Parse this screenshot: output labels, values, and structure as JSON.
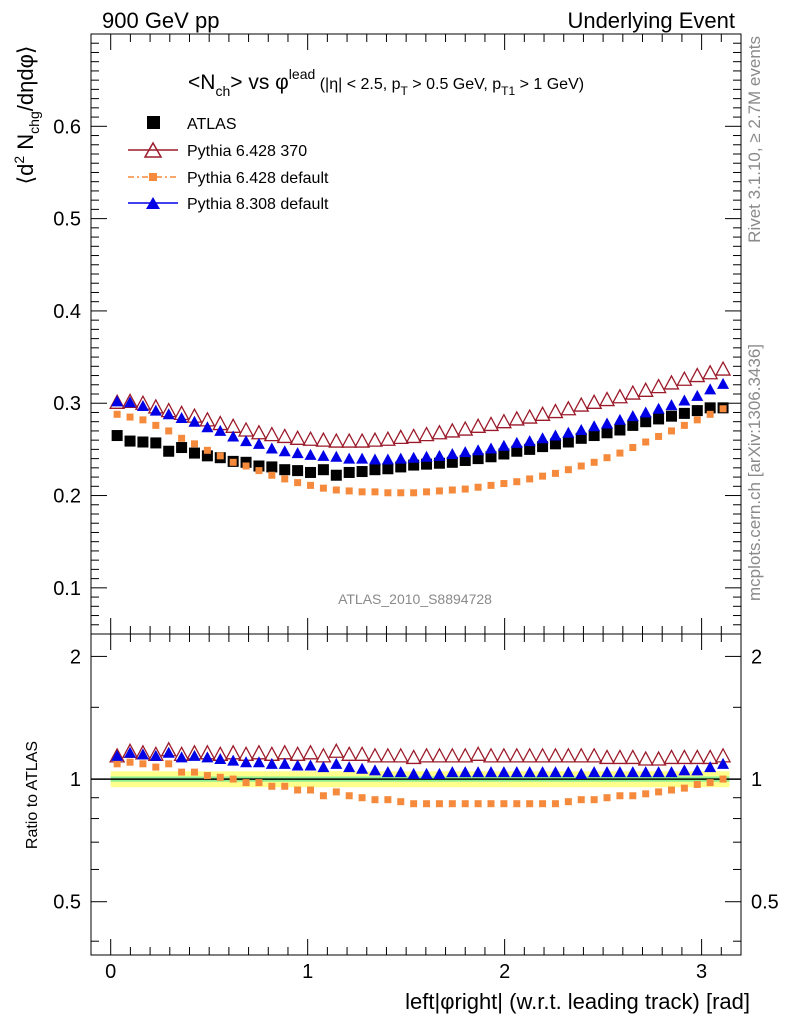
{
  "header": {
    "left": "900 GeV pp",
    "right": "Underlying Event"
  },
  "side_labels": {
    "rivet": "Rivet 3.1.10, ≥ 2.7M events",
    "mcplots": "mcplots.cern.ch [arXiv:1306.3436]"
  },
  "plot_title": {
    "main": "<N",
    "sub1": "ch",
    "mid": "> vs φ",
    "sup1": "lead",
    "cut1": " (|η| < 2.5, p",
    "sub2": "T",
    "cut2": " > 0.5 GeV, p",
    "sub3": "T1",
    "cut3": " > 1 GeV)"
  },
  "ylabel_parts": {
    "a": "⟨d",
    "b": "2",
    "c": " N",
    "d": "chg",
    "e": "/dηdφ⟩"
  },
  "watermark": "ATLAS_2010_S8894728",
  "colors": {
    "atlas": "#000000",
    "py6_370": "#9b1b2a",
    "py6_default": "#f58a3c",
    "py8_default": "#0000e6",
    "band_inner": "#90ee90",
    "band_outer": "#ffff8c"
  },
  "chart_data": [
    {
      "type": "scatter",
      "panel": "main",
      "xlabel": "left|φright| (w.r.t. leading track) [rad]",
      "ylabel": "⟨d2 Nchg/dηdφ⟩",
      "xlim": [
        -0.1,
        3.2
      ],
      "ylim": [
        0.05,
        0.7
      ],
      "yticks": [
        0.1,
        0.2,
        0.3,
        0.4,
        0.5,
        0.6
      ],
      "legend_position": "top-left",
      "x": [
        0.0327,
        0.0982,
        0.1636,
        0.2291,
        0.2945,
        0.36,
        0.4254,
        0.4909,
        0.5563,
        0.6218,
        0.6872,
        0.7527,
        0.8181,
        0.8836,
        0.949,
        1.0145,
        1.0799,
        1.1454,
        1.2108,
        1.2763,
        1.3417,
        1.4072,
        1.4726,
        1.5381,
        1.6035,
        1.669,
        1.7344,
        1.7999,
        1.8653,
        1.9308,
        1.9962,
        2.0617,
        2.1271,
        2.1926,
        2.258,
        2.3235,
        2.3889,
        2.4544,
        2.5198,
        2.5853,
        2.6507,
        2.7162,
        2.7816,
        2.8471,
        2.9125,
        2.978,
        3.0434,
        3.1089
      ],
      "series": [
        {
          "name": "ATLAS",
          "values": [
            0.265,
            0.259,
            0.258,
            0.257,
            0.248,
            0.252,
            0.246,
            0.243,
            0.241,
            0.237,
            0.236,
            0.232,
            0.231,
            0.228,
            0.227,
            0.225,
            0.228,
            0.222,
            0.225,
            0.226,
            0.228,
            0.229,
            0.231,
            0.233,
            0.234,
            0.235,
            0.236,
            0.238,
            0.24,
            0.242,
            0.245,
            0.248,
            0.25,
            0.253,
            0.256,
            0.258,
            0.262,
            0.265,
            0.268,
            0.271,
            0.276,
            0.28,
            0.283,
            0.286,
            0.289,
            0.292,
            0.295,
            0.295
          ]
        },
        {
          "name": "Pythia 6.428 370",
          "values": [
            0.301,
            0.302,
            0.3,
            0.296,
            0.292,
            0.289,
            0.286,
            0.282,
            0.278,
            0.275,
            0.271,
            0.268,
            0.266,
            0.264,
            0.262,
            0.261,
            0.26,
            0.259,
            0.259,
            0.259,
            0.26,
            0.261,
            0.263,
            0.264,
            0.266,
            0.268,
            0.27,
            0.272,
            0.275,
            0.277,
            0.28,
            0.283,
            0.285,
            0.288,
            0.291,
            0.294,
            0.298,
            0.301,
            0.304,
            0.307,
            0.311,
            0.314,
            0.318,
            0.322,
            0.326,
            0.33,
            0.333,
            0.337
          ]
        },
        {
          "name": "Pythia 6.428 default",
          "values": [
            0.288,
            0.285,
            0.282,
            0.276,
            0.27,
            0.262,
            0.256,
            0.249,
            0.243,
            0.236,
            0.232,
            0.227,
            0.222,
            0.218,
            0.214,
            0.211,
            0.208,
            0.206,
            0.205,
            0.204,
            0.204,
            0.203,
            0.203,
            0.203,
            0.204,
            0.205,
            0.206,
            0.207,
            0.209,
            0.211,
            0.213,
            0.215,
            0.218,
            0.221,
            0.224,
            0.228,
            0.232,
            0.236,
            0.241,
            0.246,
            0.252,
            0.258,
            0.264,
            0.27,
            0.276,
            0.282,
            0.288,
            0.294
          ]
        },
        {
          "name": "Pythia 8.308 default",
          "values": [
            0.302,
            0.301,
            0.297,
            0.292,
            0.288,
            0.284,
            0.28,
            0.274,
            0.27,
            0.264,
            0.259,
            0.256,
            0.251,
            0.248,
            0.246,
            0.244,
            0.243,
            0.242,
            0.24,
            0.24,
            0.239,
            0.239,
            0.24,
            0.241,
            0.242,
            0.243,
            0.245,
            0.247,
            0.249,
            0.251,
            0.254,
            0.257,
            0.259,
            0.262,
            0.265,
            0.268,
            0.271,
            0.275,
            0.278,
            0.282,
            0.286,
            0.29,
            0.294,
            0.298,
            0.303,
            0.308,
            0.315,
            0.321
          ]
        }
      ]
    },
    {
      "type": "scatter",
      "panel": "ratio",
      "ylabel": "Ratio to ATLAS",
      "ylim": [
        0.37,
        2.27
      ],
      "yticks": [
        0.5,
        1,
        2
      ],
      "xticks": [
        0,
        1,
        2,
        3
      ],
      "band": {
        "green": [
          0.985,
          1.015
        ],
        "yellow": [
          0.955,
          1.045
        ]
      },
      "series": [
        {
          "name": "Pythia 6.428 370",
          "values": [
            1.14,
            1.17,
            1.16,
            1.15,
            1.18,
            1.15,
            1.16,
            1.16,
            1.15,
            1.16,
            1.15,
            1.16,
            1.15,
            1.16,
            1.15,
            1.16,
            1.14,
            1.17,
            1.15,
            1.15,
            1.14,
            1.14,
            1.14,
            1.13,
            1.14,
            1.14,
            1.14,
            1.14,
            1.15,
            1.14,
            1.14,
            1.14,
            1.14,
            1.14,
            1.14,
            1.14,
            1.14,
            1.14,
            1.13,
            1.13,
            1.13,
            1.12,
            1.12,
            1.13,
            1.13,
            1.13,
            1.13,
            1.14
          ]
        },
        {
          "name": "Pythia 6.428 default",
          "values": [
            1.09,
            1.1,
            1.09,
            1.07,
            1.09,
            1.04,
            1.04,
            1.02,
            1.01,
            1.0,
            0.98,
            0.98,
            0.96,
            0.96,
            0.94,
            0.94,
            0.91,
            0.93,
            0.91,
            0.9,
            0.89,
            0.89,
            0.88,
            0.87,
            0.87,
            0.87,
            0.87,
            0.87,
            0.87,
            0.87,
            0.87,
            0.87,
            0.87,
            0.87,
            0.87,
            0.88,
            0.89,
            0.89,
            0.9,
            0.91,
            0.91,
            0.92,
            0.93,
            0.94,
            0.95,
            0.97,
            0.98,
            1.0
          ]
        },
        {
          "name": "Pythia 8.308 default",
          "values": [
            1.14,
            1.16,
            1.15,
            1.14,
            1.16,
            1.13,
            1.14,
            1.13,
            1.12,
            1.11,
            1.1,
            1.1,
            1.09,
            1.09,
            1.08,
            1.08,
            1.07,
            1.09,
            1.07,
            1.06,
            1.05,
            1.04,
            1.04,
            1.03,
            1.03,
            1.03,
            1.04,
            1.04,
            1.04,
            1.04,
            1.04,
            1.04,
            1.04,
            1.04,
            1.04,
            1.04,
            1.03,
            1.04,
            1.04,
            1.04,
            1.04,
            1.04,
            1.04,
            1.04,
            1.05,
            1.05,
            1.07,
            1.09
          ]
        }
      ]
    }
  ]
}
